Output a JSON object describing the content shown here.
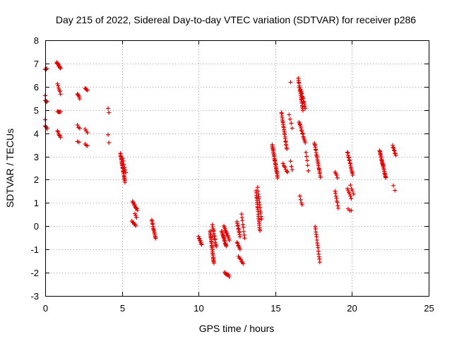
{
  "chart_data": {
    "type": "scatter",
    "title": "Day 215 of 2022, Sidereal Day-to-day VTEC variation (SDTVAR) for receiver p286",
    "xlabel": "GPS time / hours",
    "ylabel": "SDTVAR / TECUs",
    "xlim": [
      0,
      25
    ],
    "ylim": [
      -3,
      8
    ],
    "xticks": [
      0,
      5,
      10,
      15,
      20,
      25
    ],
    "yticks": [
      -3,
      -2,
      -1,
      0,
      1,
      2,
      3,
      4,
      5,
      6,
      7,
      8
    ],
    "grid": true,
    "marker": "+",
    "color": "#e00000",
    "segments": [
      {
        "x0": 0.0,
        "x1": 0.1,
        "y0": 6.75,
        "y1": 6.75,
        "n": 4
      },
      {
        "x0": 0.0,
        "x1": 0.12,
        "y0": 5.4,
        "y1": 5.35,
        "n": 4
      },
      {
        "x0": 0.0,
        "x1": 0.12,
        "y0": 4.3,
        "y1": 4.2,
        "n": 4
      },
      {
        "x0": 0.0,
        "x1": 0.05,
        "y0": 5.6,
        "y1": 5.6,
        "n": 1
      },
      {
        "x0": 0.0,
        "x1": 0.05,
        "y0": 4.6,
        "y1": 4.6,
        "n": 1
      },
      {
        "x0": 0.75,
        "x1": 1.0,
        "y0": 7.05,
        "y1": 6.8,
        "n": 12
      },
      {
        "x0": 0.8,
        "x1": 1.0,
        "y0": 6.1,
        "y1": 5.7,
        "n": 6
      },
      {
        "x0": 0.8,
        "x1": 1.0,
        "y0": 4.95,
        "y1": 4.9,
        "n": 5
      },
      {
        "x0": 0.8,
        "x1": 1.0,
        "y0": 4.1,
        "y1": 3.8,
        "n": 6
      },
      {
        "x0": 2.1,
        "x1": 2.25,
        "y0": 5.7,
        "y1": 5.5,
        "n": 5
      },
      {
        "x0": 2.1,
        "x1": 2.25,
        "y0": 4.35,
        "y1": 4.2,
        "n": 3
      },
      {
        "x0": 2.1,
        "x1": 2.2,
        "y0": 3.65,
        "y1": 3.6,
        "n": 2
      },
      {
        "x0": 2.6,
        "x1": 2.75,
        "y0": 5.95,
        "y1": 5.85,
        "n": 4
      },
      {
        "x0": 2.6,
        "x1": 2.75,
        "y0": 4.15,
        "y1": 4.05,
        "n": 3
      },
      {
        "x0": 2.6,
        "x1": 2.75,
        "y0": 3.55,
        "y1": 3.45,
        "n": 3
      },
      {
        "x0": 4.1,
        "x1": 4.15,
        "y0": 5.1,
        "y1": 4.9,
        "n": 2
      },
      {
        "x0": 4.1,
        "x1": 4.15,
        "y0": 3.95,
        "y1": 3.6,
        "n": 2
      },
      {
        "x0": 4.9,
        "x1": 5.2,
        "y0": 3.15,
        "y1": 1.9,
        "n": 26
      },
      {
        "x0": 5.05,
        "x1": 5.25,
        "y0": 2.9,
        "y1": 2.3,
        "n": 6
      },
      {
        "x0": 5.7,
        "x1": 6.0,
        "y0": 1.05,
        "y1": 0.7,
        "n": 10
      },
      {
        "x0": 5.65,
        "x1": 5.9,
        "y0": 0.2,
        "y1": 0.05,
        "n": 6
      },
      {
        "x0": 5.85,
        "x1": 5.95,
        "y0": 0.55,
        "y1": 0.35,
        "n": 3
      },
      {
        "x0": 6.95,
        "x1": 7.2,
        "y0": 0.25,
        "y1": -0.55,
        "n": 14
      },
      {
        "x0": 10.0,
        "x1": 10.2,
        "y0": -0.45,
        "y1": -0.8,
        "n": 8
      },
      {
        "x0": 10.75,
        "x1": 11.0,
        "y0": -0.2,
        "y1": -1.6,
        "n": 26
      },
      {
        "x0": 10.9,
        "x1": 11.15,
        "y0": 0.05,
        "y1": -0.9,
        "n": 14
      },
      {
        "x0": 11.5,
        "x1": 11.8,
        "y0": -0.2,
        "y1": -0.85,
        "n": 18
      },
      {
        "x0": 11.65,
        "x1": 12.0,
        "y0": 0.0,
        "y1": -0.6,
        "n": 12
      },
      {
        "x0": 11.7,
        "x1": 12.0,
        "y0": -2.0,
        "y1": -2.15,
        "n": 8
      },
      {
        "x0": 12.5,
        "x1": 12.7,
        "y0": 0.2,
        "y1": -0.45,
        "n": 10
      },
      {
        "x0": 12.5,
        "x1": 12.7,
        "y0": -0.7,
        "y1": -1.0,
        "n": 6
      },
      {
        "x0": 12.6,
        "x1": 12.9,
        "y0": -1.3,
        "y1": -1.6,
        "n": 7
      },
      {
        "x0": 12.8,
        "x1": 13.0,
        "y0": 0.5,
        "y1": -0.5,
        "n": 8
      },
      {
        "x0": 13.75,
        "x1": 14.0,
        "y0": 1.5,
        "y1": -0.2,
        "n": 22
      },
      {
        "x0": 13.85,
        "x1": 14.1,
        "y0": 1.65,
        "y1": 0.3,
        "n": 12
      },
      {
        "x0": 14.8,
        "x1": 15.15,
        "y0": 3.5,
        "y1": 2.1,
        "n": 28
      },
      {
        "x0": 15.4,
        "x1": 15.75,
        "y0": 4.9,
        "y1": 3.3,
        "n": 22
      },
      {
        "x0": 15.5,
        "x1": 15.8,
        "y0": 2.7,
        "y1": 2.3,
        "n": 6
      },
      {
        "x0": 16.0,
        "x1": 16.1,
        "y0": 6.2,
        "y1": 6.2,
        "n": 1
      },
      {
        "x0": 16.0,
        "x1": 16.1,
        "y0": 2.8,
        "y1": 2.4,
        "n": 3
      },
      {
        "x0": 15.9,
        "x1": 16.1,
        "y0": 4.8,
        "y1": 4.2,
        "n": 4
      },
      {
        "x0": 16.5,
        "x1": 16.8,
        "y0": 6.35,
        "y1": 5.0,
        "n": 20
      },
      {
        "x0": 16.65,
        "x1": 16.95,
        "y0": 5.9,
        "y1": 5.1,
        "n": 12
      },
      {
        "x0": 16.55,
        "x1": 16.95,
        "y0": 4.5,
        "y1": 3.6,
        "n": 14
      },
      {
        "x0": 16.6,
        "x1": 16.75,
        "y0": 1.3,
        "y1": 0.9,
        "n": 4
      },
      {
        "x0": 17.0,
        "x1": 17.15,
        "y0": 3.2,
        "y1": 2.4,
        "n": 5
      },
      {
        "x0": 17.55,
        "x1": 17.95,
        "y0": 3.6,
        "y1": 2.1,
        "n": 22
      },
      {
        "x0": 17.6,
        "x1": 17.9,
        "y0": 0.0,
        "y1": -1.55,
        "n": 14
      },
      {
        "x0": 18.9,
        "x1": 19.05,
        "y0": 2.3,
        "y1": 2.1,
        "n": 4
      },
      {
        "x0": 18.9,
        "x1": 19.1,
        "y0": 1.5,
        "y1": 0.8,
        "n": 8
      },
      {
        "x0": 19.7,
        "x1": 20.05,
        "y0": 3.2,
        "y1": 2.2,
        "n": 16
      },
      {
        "x0": 19.7,
        "x1": 19.95,
        "y0": 1.6,
        "y1": 1.2,
        "n": 6
      },
      {
        "x0": 19.9,
        "x1": 20.1,
        "y0": 1.75,
        "y1": 1.4,
        "n": 4
      },
      {
        "x0": 19.75,
        "x1": 19.95,
        "y0": 0.75,
        "y1": 0.65,
        "n": 3
      },
      {
        "x0": 21.8,
        "x1": 22.2,
        "y0": 3.25,
        "y1": 2.1,
        "n": 28
      },
      {
        "x0": 22.65,
        "x1": 22.85,
        "y0": 3.45,
        "y1": 3.05,
        "n": 8
      },
      {
        "x0": 22.7,
        "x1": 22.8,
        "y0": 1.75,
        "y1": 1.55,
        "n": 2
      }
    ]
  }
}
